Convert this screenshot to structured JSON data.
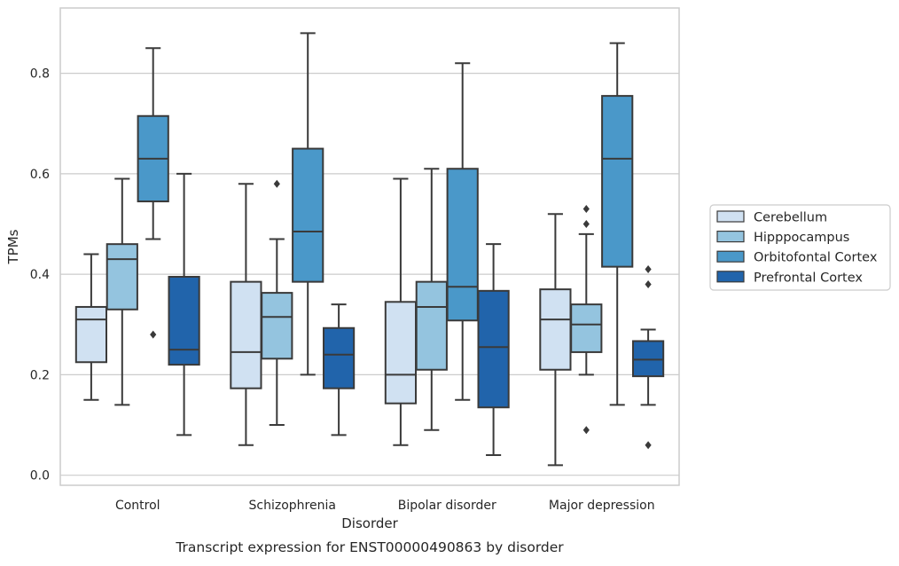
{
  "caption": "Transcript expression for ENST00000490863 by disorder",
  "chart_data": {
    "type": "box",
    "xlabel": "Disorder",
    "ylabel": "TPMs",
    "categories": [
      "Control",
      "Schizophrenia",
      "Bipolar disorder",
      "Major depression"
    ],
    "ylim": [
      -0.02,
      0.93
    ],
    "yticks": [
      0.0,
      0.2,
      0.4,
      0.6,
      0.8
    ],
    "ytick_labels": [
      "0.0",
      "0.2",
      "0.4",
      "0.6",
      "0.8"
    ],
    "grid": "horizontal",
    "legend_position": "right",
    "series": [
      {
        "name": "Cerebellum",
        "color": "#d0e1f2",
        "boxes": [
          {
            "whislo": 0.15,
            "q1": 0.225,
            "med": 0.31,
            "q3": 0.335,
            "whishi": 0.44,
            "fliers": []
          },
          {
            "whislo": 0.06,
            "q1": 0.173,
            "med": 0.245,
            "q3": 0.385,
            "whishi": 0.58,
            "fliers": []
          },
          {
            "whislo": 0.06,
            "q1": 0.143,
            "med": 0.2,
            "q3": 0.345,
            "whishi": 0.59,
            "fliers": []
          },
          {
            "whislo": 0.02,
            "q1": 0.21,
            "med": 0.31,
            "q3": 0.37,
            "whishi": 0.52,
            "fliers": []
          }
        ]
      },
      {
        "name": "Hipppocampus",
        "color": "#94c4df",
        "boxes": [
          {
            "whislo": 0.14,
            "q1": 0.33,
            "med": 0.43,
            "q3": 0.46,
            "whishi": 0.59,
            "fliers": []
          },
          {
            "whislo": 0.1,
            "q1": 0.232,
            "med": 0.315,
            "q3": 0.363,
            "whishi": 0.47,
            "fliers": [
              0.58
            ]
          },
          {
            "whislo": 0.09,
            "q1": 0.21,
            "med": 0.335,
            "q3": 0.385,
            "whishi": 0.61,
            "fliers": []
          },
          {
            "whislo": 0.2,
            "q1": 0.245,
            "med": 0.3,
            "q3": 0.34,
            "whishi": 0.48,
            "fliers": [
              0.53,
              0.5,
              0.09
            ]
          }
        ]
      },
      {
        "name": "Orbitofontal Cortex",
        "color": "#4a98c9",
        "boxes": [
          {
            "whislo": 0.47,
            "q1": 0.545,
            "med": 0.63,
            "q3": 0.715,
            "whishi": 0.85,
            "fliers": [
              0.28
            ]
          },
          {
            "whislo": 0.2,
            "q1": 0.385,
            "med": 0.485,
            "q3": 0.65,
            "whishi": 0.88,
            "fliers": []
          },
          {
            "whislo": 0.15,
            "q1": 0.308,
            "med": 0.375,
            "q3": 0.61,
            "whishi": 0.82,
            "fliers": []
          },
          {
            "whislo": 0.14,
            "q1": 0.415,
            "med": 0.63,
            "q3": 0.755,
            "whishi": 0.86,
            "fliers": []
          }
        ]
      },
      {
        "name": "Prefrontal Cortex",
        "color": "#2164ab",
        "boxes": [
          {
            "whislo": 0.08,
            "q1": 0.22,
            "med": 0.25,
            "q3": 0.395,
            "whishi": 0.6,
            "fliers": []
          },
          {
            "whislo": 0.08,
            "q1": 0.173,
            "med": 0.24,
            "q3": 0.293,
            "whishi": 0.34,
            "fliers": []
          },
          {
            "whislo": 0.04,
            "q1": 0.135,
            "med": 0.255,
            "q3": 0.367,
            "whishi": 0.46,
            "fliers": []
          },
          {
            "whislo": 0.14,
            "q1": 0.197,
            "med": 0.23,
            "q3": 0.267,
            "whishi": 0.29,
            "fliers": [
              0.41,
              0.38,
              0.06
            ]
          }
        ]
      }
    ]
  }
}
